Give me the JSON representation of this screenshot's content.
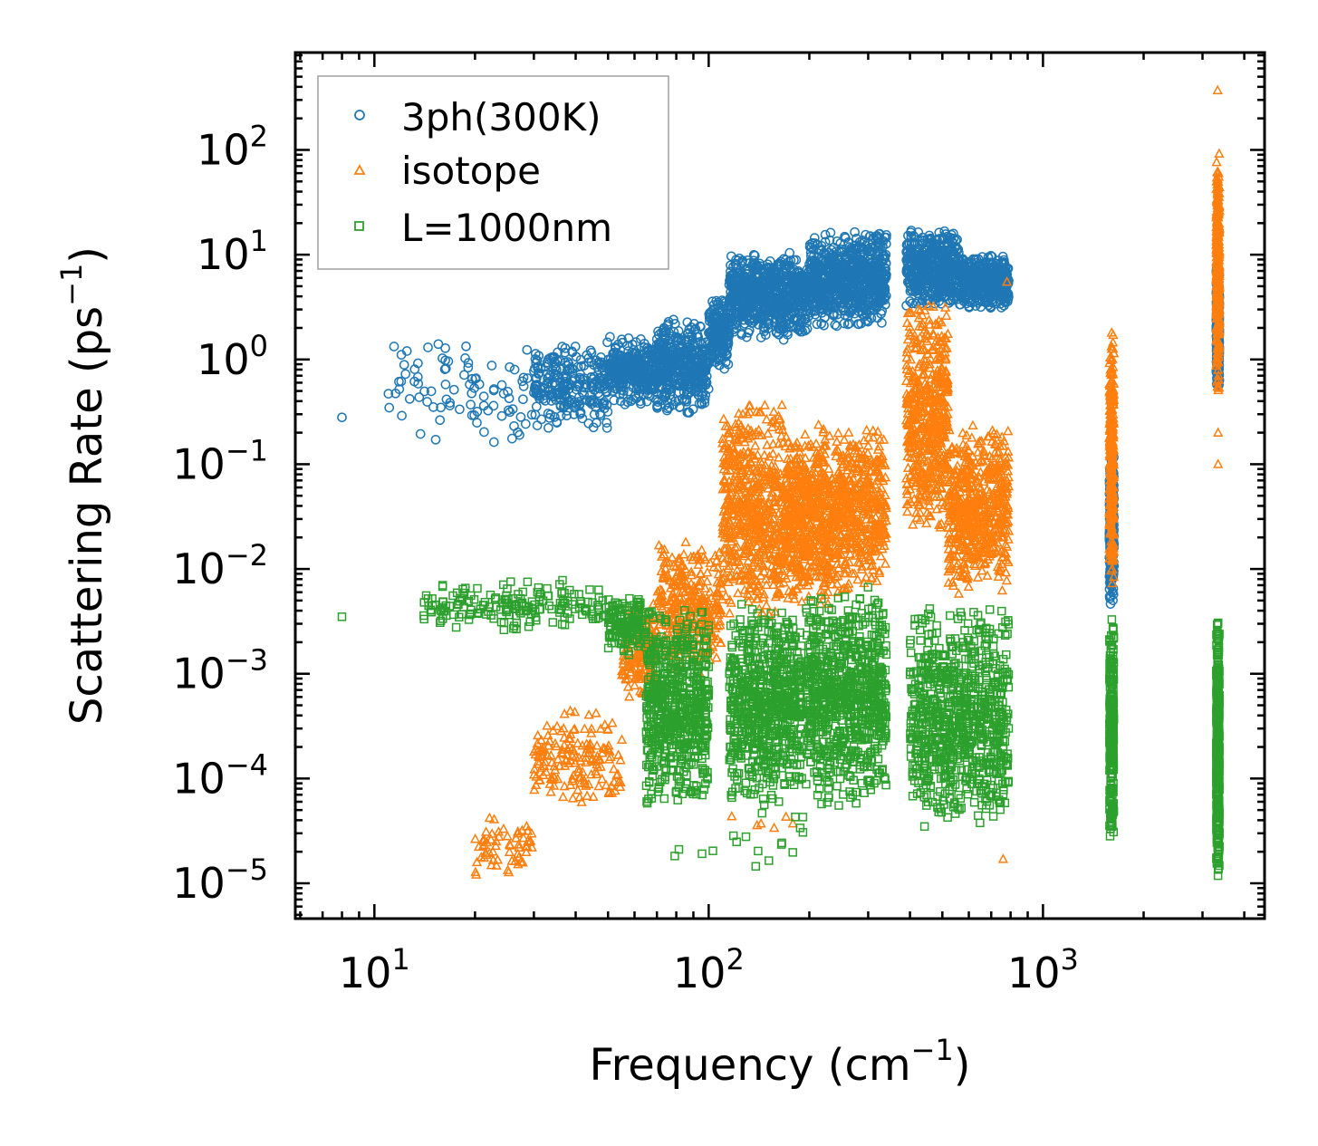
{
  "chart_data": {
    "type": "scatter",
    "title": "",
    "xlabel": "Frequency (cm",
    "xlabel_sup": "−1",
    "xlabel_end": ")",
    "ylabel": "Scattering Rate (ps",
    "ylabel_sup": "−1",
    "ylabel_end": ")",
    "xscale": "log",
    "yscale": "log",
    "xlim": [
      5.8,
      4600
    ],
    "ylim": [
      4.6e-06,
      850
    ],
    "x_major_ticks": [
      {
        "value": 10,
        "base": "10",
        "exp": "1"
      },
      {
        "value": 100,
        "base": "10",
        "exp": "2"
      },
      {
        "value": 1000,
        "base": "10",
        "exp": "3"
      }
    ],
    "y_major_ticks": [
      {
        "value": 1e-05,
        "base": "10",
        "exp": "−5"
      },
      {
        "value": 0.0001,
        "base": "10",
        "exp": "−4"
      },
      {
        "value": 0.001,
        "base": "10",
        "exp": "−3"
      },
      {
        "value": 0.01,
        "base": "10",
        "exp": "−2"
      },
      {
        "value": 0.1,
        "base": "10",
        "exp": "−1"
      },
      {
        "value": 1,
        "base": "10",
        "exp": "0"
      },
      {
        "value": 10,
        "base": "10",
        "exp": "1"
      },
      {
        "value": 100,
        "base": "10",
        "exp": "2"
      }
    ],
    "legend_position": "top-left",
    "series": [
      {
        "name": "3ph(300K)",
        "marker": "circle",
        "color": "#1f77b4",
        "clusters": [
          {
            "x": [
              8,
              8
            ],
            "y": [
              0.28,
              0.28
            ],
            "n": 1
          },
          {
            "x": [
              11,
              30
            ],
            "y": [
              0.12,
              2.0
            ],
            "n": 90
          },
          {
            "x": [
              30,
              50
            ],
            "y": [
              0.2,
              1.5
            ],
            "n": 260
          },
          {
            "x": [
              50,
              70
            ],
            "y": [
              0.35,
              1.8
            ],
            "n": 320
          },
          {
            "x": [
              70,
              100
            ],
            "y": [
              0.28,
              2.6
            ],
            "n": 420
          },
          {
            "x": [
              100,
              115
            ],
            "y": [
              0.8,
              4.0
            ],
            "n": 200
          },
          {
            "x": [
              115,
              200
            ],
            "y": [
              1.5,
              10.5
            ],
            "n": 700
          },
          {
            "x": [
              200,
              340
            ],
            "y": [
              2.0,
              17.0
            ],
            "n": 750
          },
          {
            "x": [
              390,
              560
            ],
            "y": [
              3.0,
              18.0
            ],
            "n": 450
          },
          {
            "x": [
              560,
              790
            ],
            "y": [
              3.0,
              10.0
            ],
            "n": 450
          },
          {
            "x": [
              1580,
              1630
            ],
            "y": [
              0.0045,
              0.15
            ],
            "n": 260
          },
          {
            "x": [
              3300,
              3370
            ],
            "y": [
              0.5,
              8.0
            ],
            "n": 320
          }
        ]
      },
      {
        "name": "isotope",
        "marker": "triangle",
        "color": "#ff7f0e",
        "clusters": [
          {
            "x": [
              20,
              30
            ],
            "y": [
              1e-05,
              5e-05
            ],
            "n": 60
          },
          {
            "x": [
              30,
              55
            ],
            "y": [
              5e-05,
              0.0005
            ],
            "n": 170
          },
          {
            "x": [
              55,
              70
            ],
            "y": [
              0.0005,
              0.005
            ],
            "n": 180
          },
          {
            "x": [
              70,
              110
            ],
            "y": [
              0.001,
              0.02
            ],
            "n": 320
          },
          {
            "x": [
              110,
              170
            ],
            "y": [
              0.003,
              0.45
            ],
            "n": 620
          },
          {
            "x": [
              170,
              230
            ],
            "y": [
              0.004,
              0.25
            ],
            "n": 520
          },
          {
            "x": [
              230,
              340
            ],
            "y": [
              0.005,
              0.25
            ],
            "n": 500
          },
          {
            "x": [
              390,
              520
            ],
            "y": [
              0.02,
              4.0
            ],
            "n": 520
          },
          {
            "x": [
              520,
              790
            ],
            "y": [
              0.005,
              0.25
            ],
            "n": 600
          },
          {
            "x": [
              110,
              180
            ],
            "y": [
              3e-05,
              5e-05
            ],
            "n": 6
          },
          {
            "x": [
              780,
              780
            ],
            "y": [
              5.5,
              5.5
            ],
            "n": 1
          },
          {
            "x": [
              760,
              760
            ],
            "y": [
              1.7e-05,
              1.7e-05
            ],
            "n": 1
          },
          {
            "x": [
              1580,
              1630
            ],
            "y": [
              0.006,
              2.0
            ],
            "n": 300
          },
          {
            "x": [
              3300,
              3370
            ],
            "y": [
              0.5,
              100
            ],
            "n": 420
          },
          {
            "x": [
              3330,
              3330
            ],
            "y": [
              370,
              370
            ],
            "n": 1
          },
          {
            "x": [
              3340,
              3340
            ],
            "y": [
              0.2,
              0.2
            ],
            "n": 1
          },
          {
            "x": [
              3340,
              3340
            ],
            "y": [
              0.1,
              0.1
            ],
            "n": 1
          }
        ]
      },
      {
        "name": "L=1000nm",
        "marker": "square",
        "color": "#2ca02c",
        "clusters": [
          {
            "x": [
              8,
              8
            ],
            "y": [
              0.0035,
              0.0035
            ],
            "n": 1
          },
          {
            "x": [
              14,
              50
            ],
            "y": [
              0.0025,
              0.008
            ],
            "n": 180
          },
          {
            "x": [
              50,
              65
            ],
            "y": [
              0.0015,
              0.006
            ],
            "n": 140
          },
          {
            "x": [
              65,
              100
            ],
            "y": [
              5e-05,
              0.005
            ],
            "n": 600
          },
          {
            "x": [
              115,
              190
            ],
            "y": [
              5e-05,
              0.005
            ],
            "n": 700
          },
          {
            "x": [
              195,
              340
            ],
            "y": [
              5e-05,
              0.007
            ],
            "n": 800
          },
          {
            "x": [
              400,
              790
            ],
            "y": [
              3e-05,
              0.005
            ],
            "n": 800
          },
          {
            "x": [
              70,
              200
            ],
            "y": [
              1.2e-05,
              5e-05
            ],
            "n": 18
          },
          {
            "x": [
              1580,
              1630
            ],
            "y": [
              2e-05,
              0.0035
            ],
            "n": 280
          },
          {
            "x": [
              3300,
              3370
            ],
            "y": [
              1e-05,
              0.0037
            ],
            "n": 420
          }
        ]
      }
    ]
  }
}
